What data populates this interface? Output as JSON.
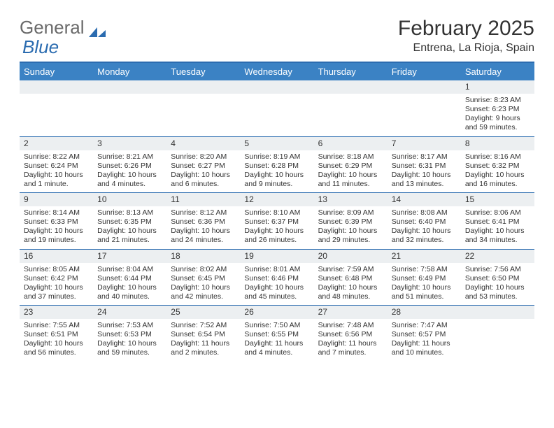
{
  "brand": {
    "part1": "General",
    "part2": "Blue"
  },
  "title": "February 2025",
  "location": "Entrena, La Rioja, Spain",
  "colors": {
    "header_bar": "#3b82c4",
    "border": "#2b6cb0",
    "daynum_bg": "#eceff1",
    "text": "#333333",
    "white": "#ffffff"
  },
  "weekdays": [
    "Sunday",
    "Monday",
    "Tuesday",
    "Wednesday",
    "Thursday",
    "Friday",
    "Saturday"
  ],
  "weeks": [
    [
      {
        "n": "",
        "lines": []
      },
      {
        "n": "",
        "lines": []
      },
      {
        "n": "",
        "lines": []
      },
      {
        "n": "",
        "lines": []
      },
      {
        "n": "",
        "lines": []
      },
      {
        "n": "",
        "lines": []
      },
      {
        "n": "1",
        "lines": [
          "Sunrise: 8:23 AM",
          "Sunset: 6:23 PM",
          "Daylight: 9 hours and 59 minutes."
        ]
      }
    ],
    [
      {
        "n": "2",
        "lines": [
          "Sunrise: 8:22 AM",
          "Sunset: 6:24 PM",
          "Daylight: 10 hours and 1 minute."
        ]
      },
      {
        "n": "3",
        "lines": [
          "Sunrise: 8:21 AM",
          "Sunset: 6:26 PM",
          "Daylight: 10 hours and 4 minutes."
        ]
      },
      {
        "n": "4",
        "lines": [
          "Sunrise: 8:20 AM",
          "Sunset: 6:27 PM",
          "Daylight: 10 hours and 6 minutes."
        ]
      },
      {
        "n": "5",
        "lines": [
          "Sunrise: 8:19 AM",
          "Sunset: 6:28 PM",
          "Daylight: 10 hours and 9 minutes."
        ]
      },
      {
        "n": "6",
        "lines": [
          "Sunrise: 8:18 AM",
          "Sunset: 6:29 PM",
          "Daylight: 10 hours and 11 minutes."
        ]
      },
      {
        "n": "7",
        "lines": [
          "Sunrise: 8:17 AM",
          "Sunset: 6:31 PM",
          "Daylight: 10 hours and 13 minutes."
        ]
      },
      {
        "n": "8",
        "lines": [
          "Sunrise: 8:16 AM",
          "Sunset: 6:32 PM",
          "Daylight: 10 hours and 16 minutes."
        ]
      }
    ],
    [
      {
        "n": "9",
        "lines": [
          "Sunrise: 8:14 AM",
          "Sunset: 6:33 PM",
          "Daylight: 10 hours and 19 minutes."
        ]
      },
      {
        "n": "10",
        "lines": [
          "Sunrise: 8:13 AM",
          "Sunset: 6:35 PM",
          "Daylight: 10 hours and 21 minutes."
        ]
      },
      {
        "n": "11",
        "lines": [
          "Sunrise: 8:12 AM",
          "Sunset: 6:36 PM",
          "Daylight: 10 hours and 24 minutes."
        ]
      },
      {
        "n": "12",
        "lines": [
          "Sunrise: 8:10 AM",
          "Sunset: 6:37 PM",
          "Daylight: 10 hours and 26 minutes."
        ]
      },
      {
        "n": "13",
        "lines": [
          "Sunrise: 8:09 AM",
          "Sunset: 6:39 PM",
          "Daylight: 10 hours and 29 minutes."
        ]
      },
      {
        "n": "14",
        "lines": [
          "Sunrise: 8:08 AM",
          "Sunset: 6:40 PM",
          "Daylight: 10 hours and 32 minutes."
        ]
      },
      {
        "n": "15",
        "lines": [
          "Sunrise: 8:06 AM",
          "Sunset: 6:41 PM",
          "Daylight: 10 hours and 34 minutes."
        ]
      }
    ],
    [
      {
        "n": "16",
        "lines": [
          "Sunrise: 8:05 AM",
          "Sunset: 6:42 PM",
          "Daylight: 10 hours and 37 minutes."
        ]
      },
      {
        "n": "17",
        "lines": [
          "Sunrise: 8:04 AM",
          "Sunset: 6:44 PM",
          "Daylight: 10 hours and 40 minutes."
        ]
      },
      {
        "n": "18",
        "lines": [
          "Sunrise: 8:02 AM",
          "Sunset: 6:45 PM",
          "Daylight: 10 hours and 42 minutes."
        ]
      },
      {
        "n": "19",
        "lines": [
          "Sunrise: 8:01 AM",
          "Sunset: 6:46 PM",
          "Daylight: 10 hours and 45 minutes."
        ]
      },
      {
        "n": "20",
        "lines": [
          "Sunrise: 7:59 AM",
          "Sunset: 6:48 PM",
          "Daylight: 10 hours and 48 minutes."
        ]
      },
      {
        "n": "21",
        "lines": [
          "Sunrise: 7:58 AM",
          "Sunset: 6:49 PM",
          "Daylight: 10 hours and 51 minutes."
        ]
      },
      {
        "n": "22",
        "lines": [
          "Sunrise: 7:56 AM",
          "Sunset: 6:50 PM",
          "Daylight: 10 hours and 53 minutes."
        ]
      }
    ],
    [
      {
        "n": "23",
        "lines": [
          "Sunrise: 7:55 AM",
          "Sunset: 6:51 PM",
          "Daylight: 10 hours and 56 minutes."
        ]
      },
      {
        "n": "24",
        "lines": [
          "Sunrise: 7:53 AM",
          "Sunset: 6:53 PM",
          "Daylight: 10 hours and 59 minutes."
        ]
      },
      {
        "n": "25",
        "lines": [
          "Sunrise: 7:52 AM",
          "Sunset: 6:54 PM",
          "Daylight: 11 hours and 2 minutes."
        ]
      },
      {
        "n": "26",
        "lines": [
          "Sunrise: 7:50 AM",
          "Sunset: 6:55 PM",
          "Daylight: 11 hours and 4 minutes."
        ]
      },
      {
        "n": "27",
        "lines": [
          "Sunrise: 7:48 AM",
          "Sunset: 6:56 PM",
          "Daylight: 11 hours and 7 minutes."
        ]
      },
      {
        "n": "28",
        "lines": [
          "Sunrise: 7:47 AM",
          "Sunset: 6:57 PM",
          "Daylight: 11 hours and 10 minutes."
        ]
      },
      {
        "n": "",
        "lines": []
      }
    ]
  ]
}
